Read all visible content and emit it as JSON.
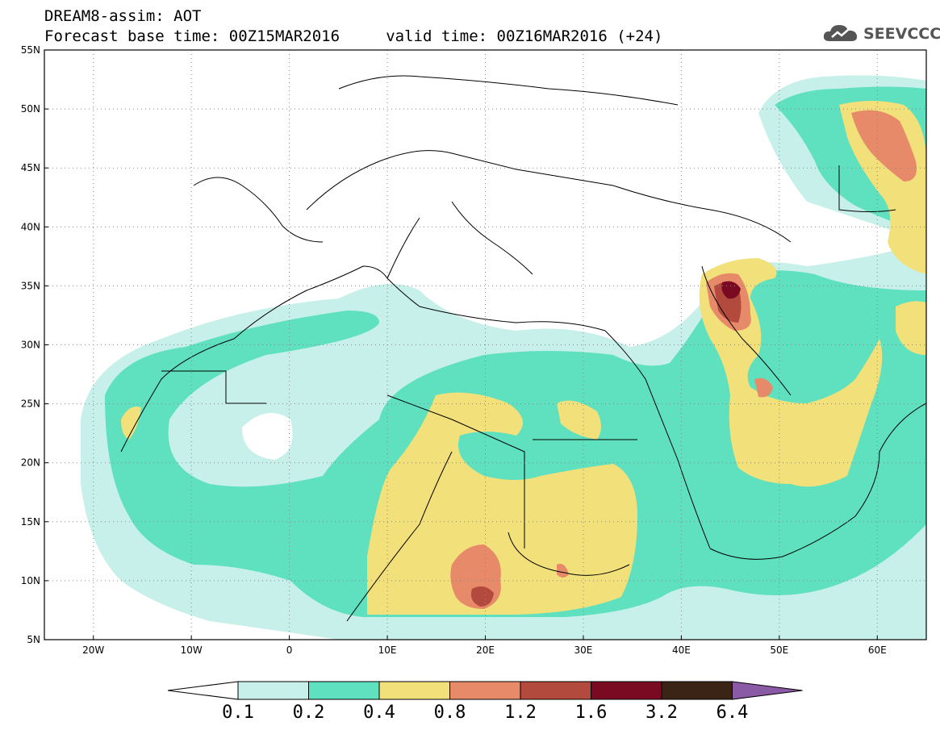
{
  "header": {
    "line1": "DREAM8-assim: AOT",
    "line2": "Forecast base time: 00Z15MAR2016     valid time: 00Z16MAR2016 (+24)"
  },
  "logo": {
    "text": "SEEVCCC",
    "icon": "cloud-icon"
  },
  "map": {
    "lat_labels": [
      "55N",
      "50N",
      "45N",
      "40N",
      "35N",
      "30N",
      "25N",
      "20N",
      "15N",
      "10N",
      "5N"
    ],
    "lon_labels": [
      "20W",
      "10W",
      "0",
      "10E",
      "20E",
      "30E",
      "40E",
      "50E",
      "60E"
    ],
    "extent": {
      "lon": [
        -25,
        65
      ],
      "lat": [
        5,
        55
      ]
    }
  },
  "colorbar": {
    "labels": [
      "0.1",
      "0.2",
      "0.4",
      "0.8",
      "1.2",
      "1.6",
      "3.2",
      "6.4"
    ],
    "colors": [
      "#c8f0ea",
      "#5fe0be",
      "#f2e07a",
      "#e78a6a",
      "#b34a3e",
      "#7a0a22",
      "#3b2416"
    ],
    "under_color": "#ffffff",
    "over_color": "#8a5aa6"
  }
}
